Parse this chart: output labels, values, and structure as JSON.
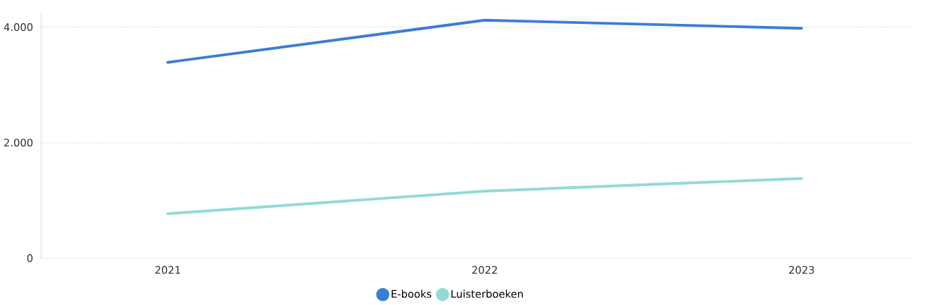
{
  "chart_data": {
    "type": "line",
    "categories": [
      "2021",
      "2022",
      "2023"
    ],
    "series": [
      {
        "name": "E-books",
        "color": "#3a7dd6",
        "values": [
          3390,
          4120,
          3980
        ]
      },
      {
        "name": "Luisterboeken",
        "color": "#94dad4",
        "values": [
          770,
          1160,
          1380
        ]
      }
    ],
    "ylim": [
      0,
      4250
    ],
    "yticks": [
      {
        "value": 0,
        "label": "0"
      },
      {
        "value": 2000,
        "label": "2.000"
      },
      {
        "value": 4000,
        "label": "4.000"
      }
    ],
    "grid": "y",
    "legend": "bottom",
    "marker": "none",
    "line_style": "solid"
  }
}
